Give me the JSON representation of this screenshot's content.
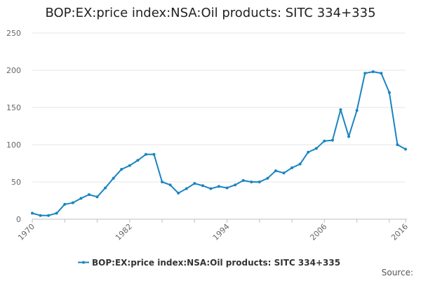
{
  "chart_data": {
    "type": "line",
    "title": "BOP:EX:price index:NSA:Oil products: SITC 334+335",
    "xlabel": "",
    "ylabel": "",
    "xlim": [
      1970,
      2016
    ],
    "ylim": [
      0,
      250
    ],
    "y_ticks": [
      0,
      50,
      100,
      150,
      200,
      250
    ],
    "x_ticks": [
      1970,
      1982,
      1994,
      2006,
      2016
    ],
    "grid": "horizontal",
    "legend_position": "bottom-center",
    "source_label": "Source:",
    "series": [
      {
        "name": "BOP:EX:price index:NSA:Oil products: SITC 334+335",
        "color": "#1a85c1",
        "x": [
          1970,
          1971,
          1972,
          1973,
          1974,
          1975,
          1976,
          1977,
          1978,
          1979,
          1980,
          1981,
          1982,
          1983,
          1984,
          1985,
          1986,
          1987,
          1988,
          1989,
          1990,
          1991,
          1992,
          1993,
          1994,
          1995,
          1996,
          1997,
          1998,
          1999,
          2000,
          2001,
          2002,
          2003,
          2004,
          2005,
          2006,
          2007,
          2008,
          2009,
          2010,
          2011,
          2012,
          2013,
          2014,
          2015,
          2016
        ],
        "y": [
          8,
          5,
          5,
          8,
          20,
          22,
          28,
          33,
          30,
          42,
          55,
          67,
          72,
          79,
          87,
          87,
          50,
          46,
          35,
          41,
          48,
          45,
          41,
          44,
          42,
          46,
          52,
          50,
          50,
          55,
          65,
          62,
          69,
          74,
          90,
          95,
          105,
          106,
          147,
          111,
          146,
          196,
          198,
          196,
          170,
          100,
          94
        ]
      }
    ]
  }
}
